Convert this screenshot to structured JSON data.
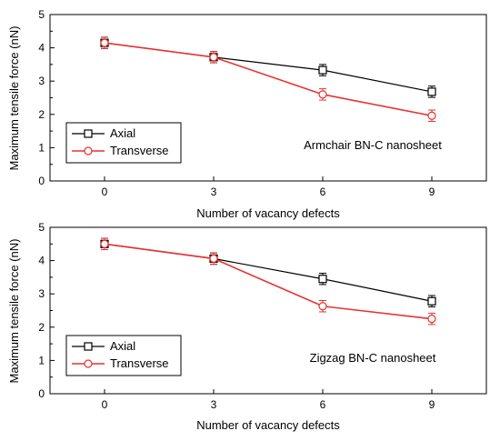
{
  "chart_data": [
    {
      "type": "line",
      "annotation": "Armchair BN-C nanosheet",
      "xlabel": "Number of vacancy defects",
      "ylabel": "Maximum tensile force (nN)",
      "x": [
        0,
        3,
        6,
        9
      ],
      "xticks": [
        "0",
        "3",
        "6",
        "9"
      ],
      "yticks": [
        "0",
        "1",
        "2",
        "3",
        "4",
        "5"
      ],
      "xlim": [
        -1.5,
        10.5
      ],
      "ylim": [
        0,
        5
      ],
      "legend_position": "bottom-left",
      "series": [
        {
          "name": "Axial",
          "color": "#000000",
          "marker": "square",
          "values": [
            4.15,
            3.72,
            3.33,
            2.68
          ],
          "errors": [
            0.17,
            0.17,
            0.17,
            0.17
          ]
        },
        {
          "name": "Transverse",
          "color": "#e8312f",
          "marker": "circle",
          "values": [
            4.15,
            3.72,
            2.6,
            1.96
          ],
          "errors": [
            0.17,
            0.17,
            0.17,
            0.17
          ]
        }
      ]
    },
    {
      "type": "line",
      "annotation": "Zigzag BN-C nanosheet",
      "xlabel": "Number of vacancy defects",
      "ylabel": "Maximum tensile force (nN)",
      "x": [
        0,
        3,
        6,
        9
      ],
      "xticks": [
        "0",
        "3",
        "6",
        "9"
      ],
      "yticks": [
        "0",
        "1",
        "2",
        "3",
        "4",
        "5"
      ],
      "xlim": [
        -1.5,
        10.5
      ],
      "ylim": [
        0,
        5
      ],
      "legend_position": "bottom-left",
      "series": [
        {
          "name": "Axial",
          "color": "#000000",
          "marker": "square",
          "values": [
            4.5,
            4.06,
            3.45,
            2.78
          ],
          "errors": [
            0.17,
            0.17,
            0.17,
            0.17
          ]
        },
        {
          "name": "Transverse",
          "color": "#e8312f",
          "marker": "circle",
          "values": [
            4.5,
            4.06,
            2.63,
            2.25
          ],
          "errors": [
            0.17,
            0.17,
            0.17,
            0.17
          ]
        }
      ]
    }
  ]
}
